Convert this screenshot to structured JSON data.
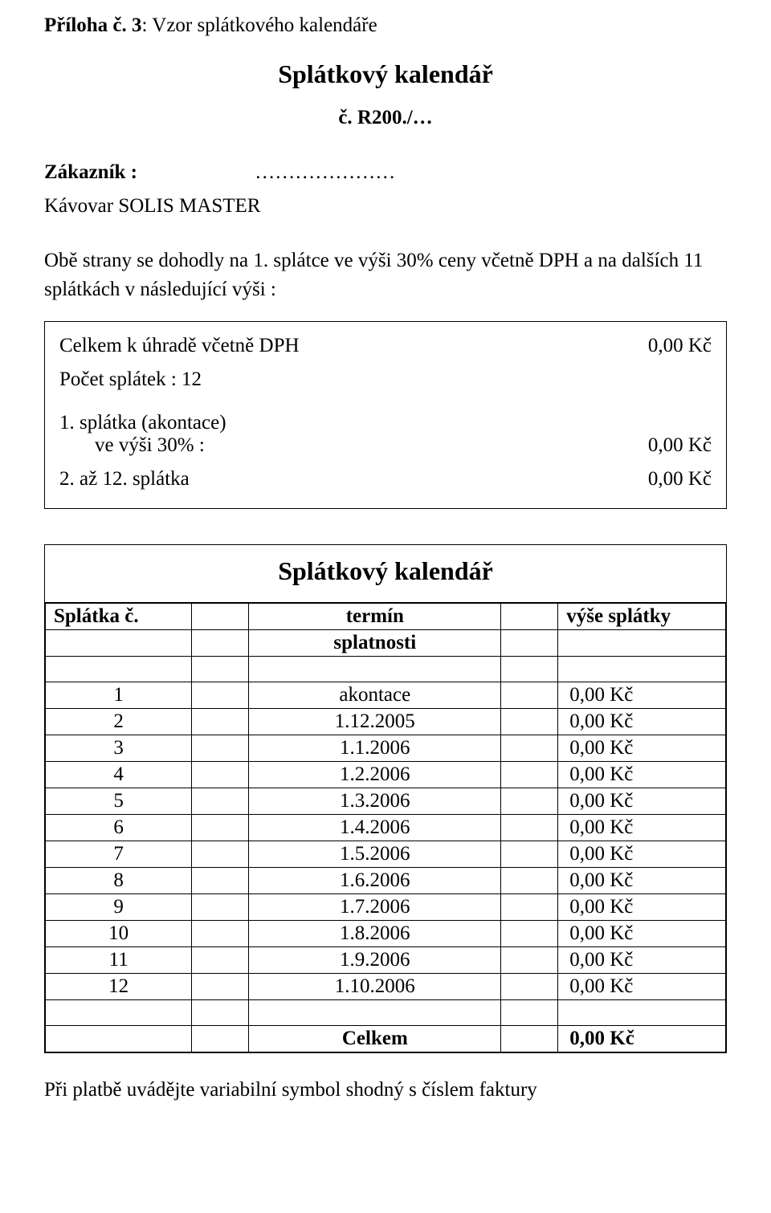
{
  "appendix": {
    "prefix_bold": "Příloha č. 3",
    "suffix": ": Vzor splátkového kalendáře"
  },
  "title": "Splátkový kalendář",
  "doc_number": "č. R200./…",
  "customer": {
    "label": "Zákazník :",
    "dots": "…………………"
  },
  "product": "Kávovar SOLIS MASTER",
  "intro": "Obě strany se dohodly na 1. splátce ve výši 30% ceny včetně DPH a na dalších 11 splátkách\n v následující výši :",
  "summary": {
    "total_label": "Celkem k úhradě včetně DPH",
    "total_value": "0,00 Kč",
    "count_label": "Počet splátek : 12",
    "first_label_a": "1. splátka (akontace)",
    "first_label_b": "ve výši 30% :",
    "first_value": "0,00 Kč",
    "rest_label": "2. až 12. splátka",
    "rest_value": "0,00 Kč"
  },
  "calendar": {
    "title": "Splátkový kalendář",
    "header": {
      "col1": "Splátka č.",
      "col3": "termín",
      "col5": "výše splátky",
      "sub_col3": "splatnosti"
    },
    "rows": [
      {
        "n": "1",
        "term": "akontace",
        "amt": "0,00 Kč"
      },
      {
        "n": "2",
        "term": "1.12.2005",
        "amt": "0,00 Kč"
      },
      {
        "n": "3",
        "term": "1.1.2006",
        "amt": "0,00 Kč"
      },
      {
        "n": "4",
        "term": "1.2.2006",
        "amt": "0,00 Kč"
      },
      {
        "n": "5",
        "term": "1.3.2006",
        "amt": "0,00 Kč"
      },
      {
        "n": "6",
        "term": "1.4.2006",
        "amt": "0,00 Kč"
      },
      {
        "n": "7",
        "term": "1.5.2006",
        "amt": "0,00 Kč"
      },
      {
        "n": "8",
        "term": "1.6.2006",
        "amt": "0,00 Kč"
      },
      {
        "n": "9",
        "term": "1.7.2006",
        "amt": "0,00 Kč"
      },
      {
        "n": "10",
        "term": "1.8.2006",
        "amt": "0,00 Kč"
      },
      {
        "n": "11",
        "term": "1.9.2006",
        "amt": "0,00 Kč"
      },
      {
        "n": "12",
        "term": "1.10.2006",
        "amt": "0,00 Kč"
      }
    ],
    "total_label": "Celkem",
    "total_value": "0,00 Kč"
  },
  "footer": "Při platbě uvádějte variabilní symbol shodný s číslem faktury"
}
